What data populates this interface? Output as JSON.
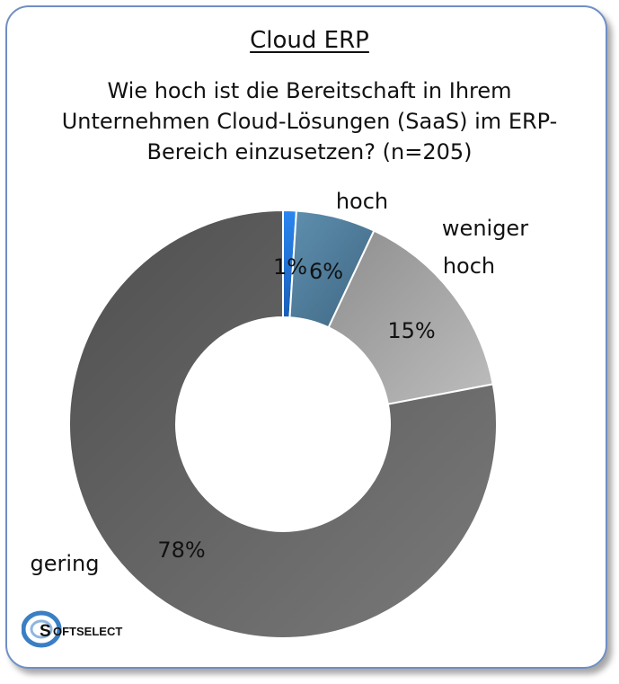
{
  "title": "Cloud ERP",
  "question": "Wie hoch ist die Bereitschaft in Ihrem Unternehmen Cloud-Lösungen (SaaS) im ERP-Bereich einzusetzen? (n=205)",
  "logo_text": "SOFTSELECT",
  "colors": {
    "sehr_hoch": "#1f74d9",
    "hoch": "#4d7d9c",
    "weniger_hoch": "#a6a6a6",
    "gering": "#6c6c6c",
    "border": "#6f8fc6"
  },
  "chart_data": {
    "type": "pie",
    "donut": true,
    "title": "Cloud ERP",
    "categories": [
      "",
      "hoch",
      "weniger hoch",
      "gering"
    ],
    "values": [
      1,
      6,
      15,
      78
    ],
    "value_labels": [
      "1%",
      "6%",
      "15%",
      "78%"
    ],
    "legend": "none"
  }
}
